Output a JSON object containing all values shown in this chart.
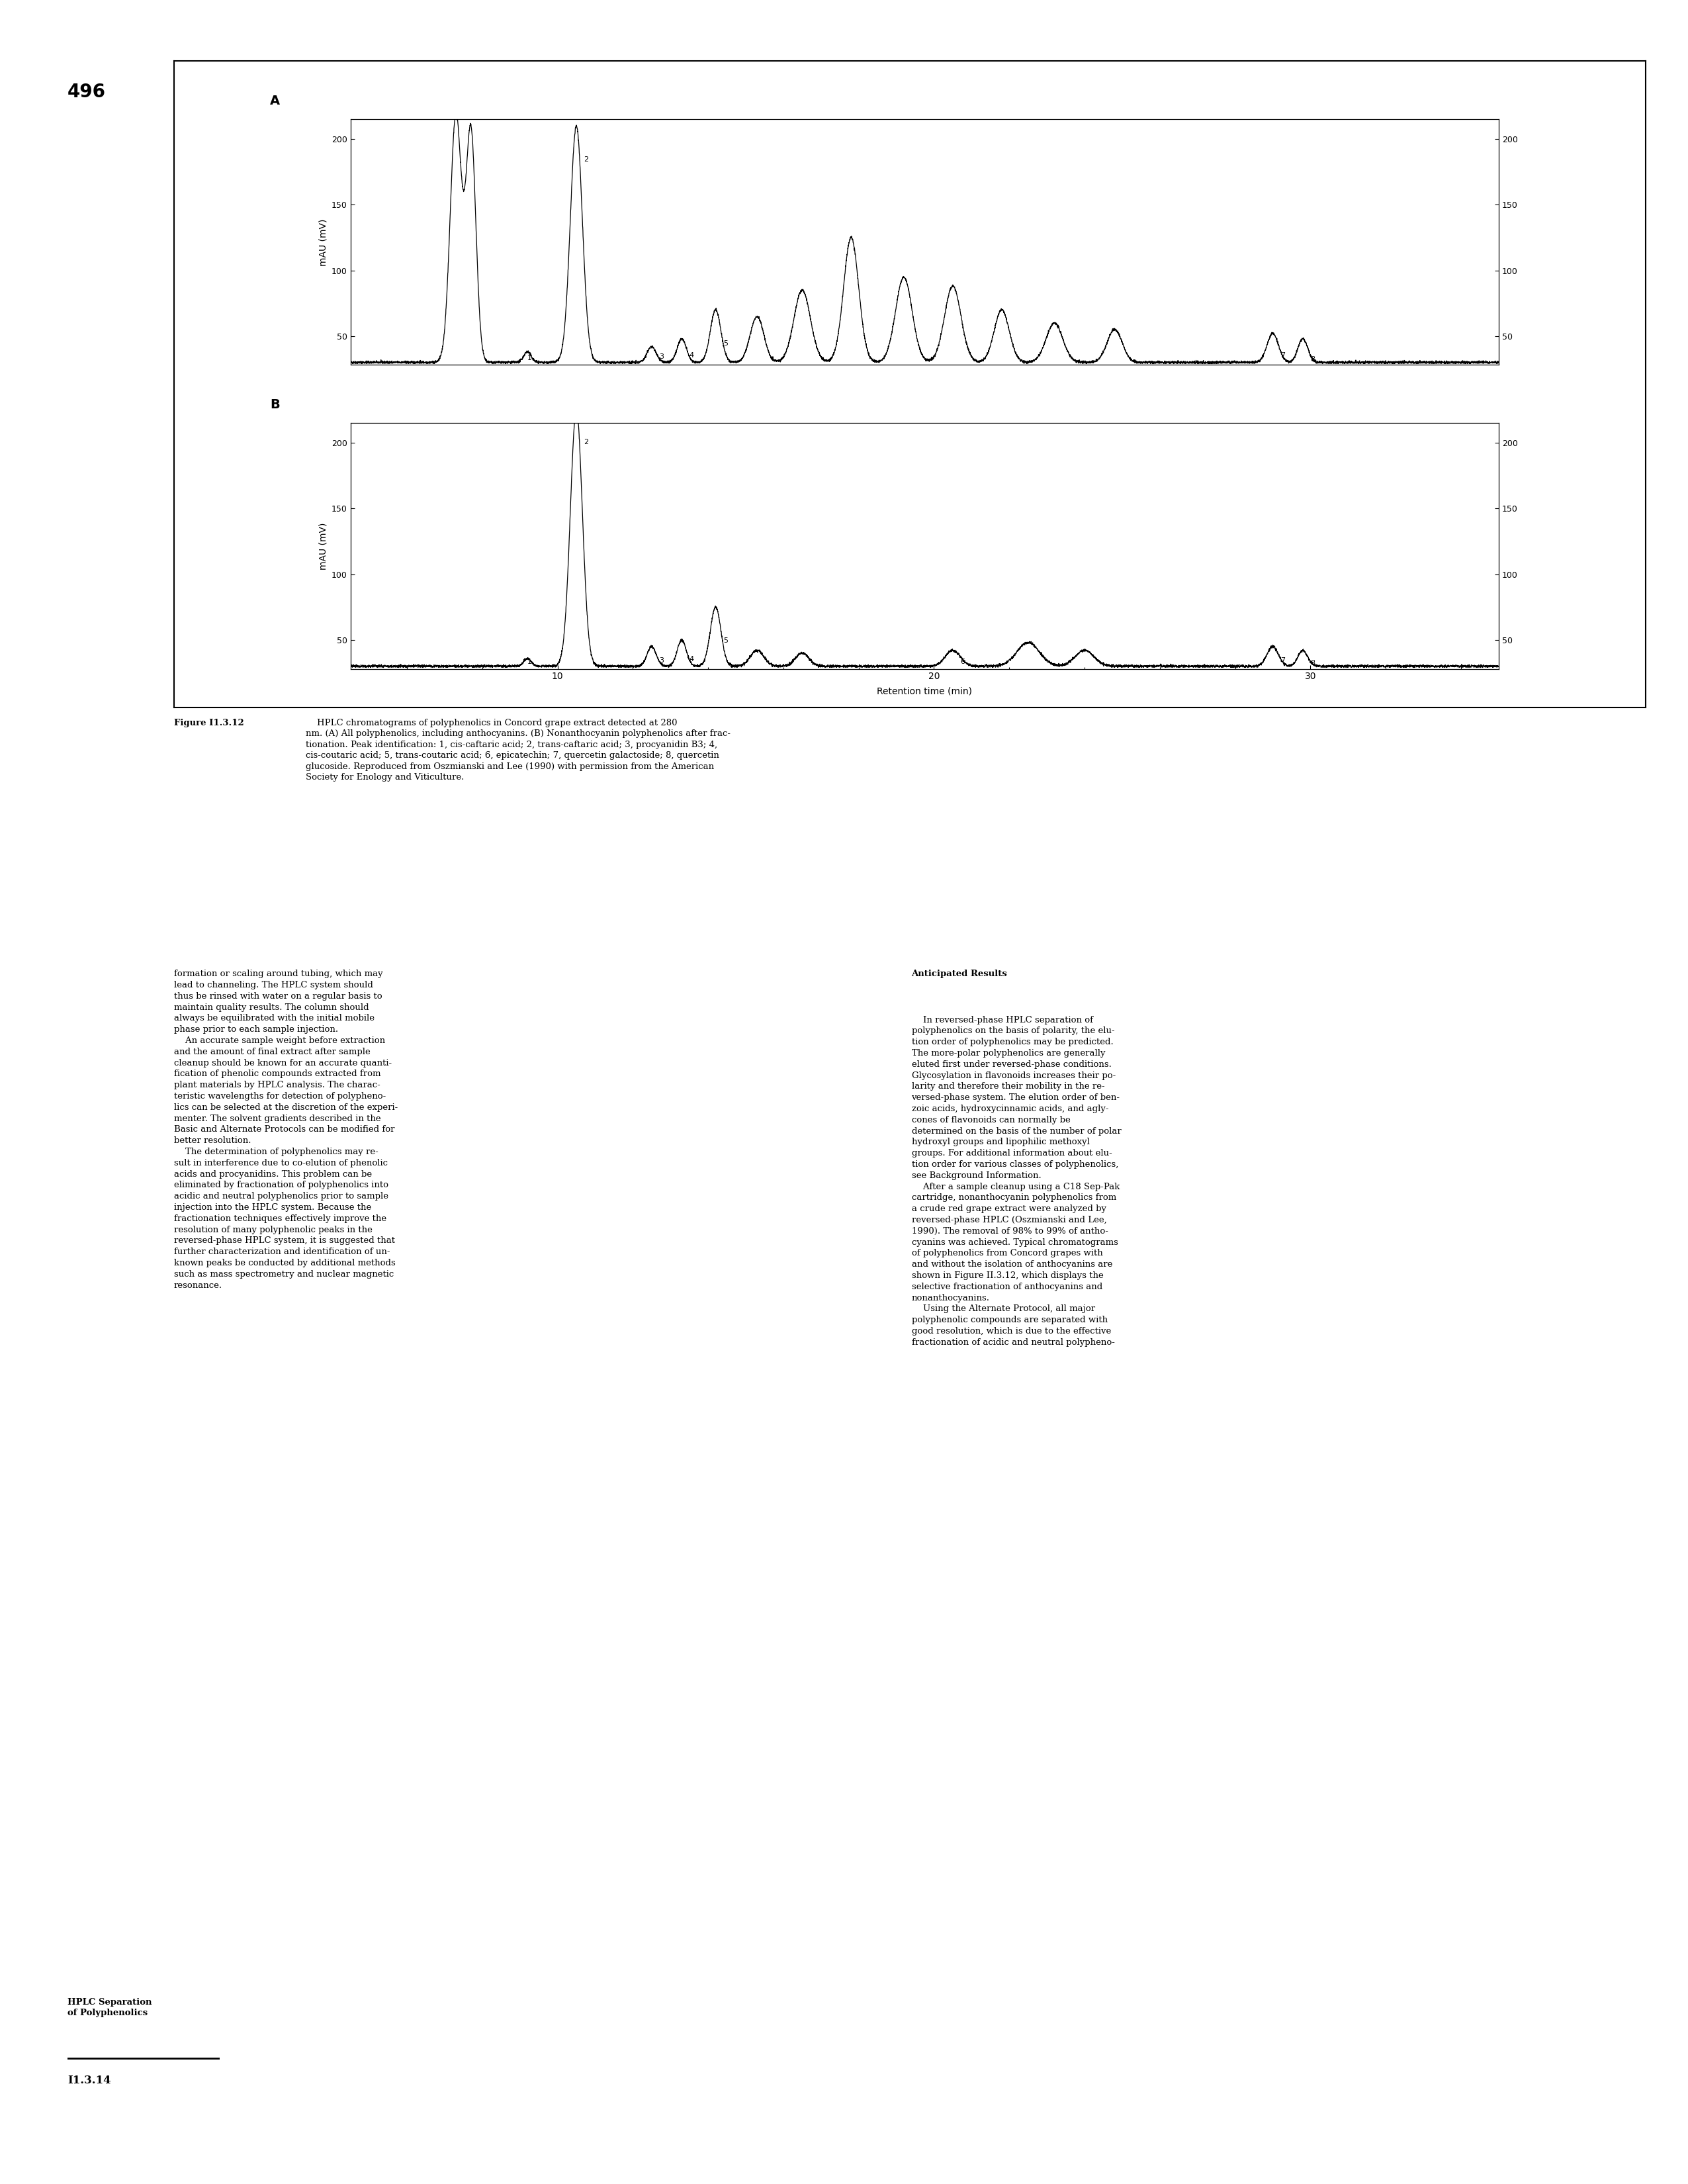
{
  "page_number": "496",
  "xlabel": "Retention time (min)",
  "ylabel": "mAU (mV)",
  "xlim": [
    4.5,
    35
  ],
  "ylim": [
    28,
    215
  ],
  "xticks": [
    10,
    20,
    30
  ],
  "yticks": [
    50,
    100,
    150,
    200
  ],
  "background_color": "#ffffff",
  "line_color": "#000000",
  "caption_figure_label": "Figure I1.3.12",
  "caption_body": "    HPLC chromatograms of polyphenolics in Concord grape extract detected at 280\nnm. (A) All polyphenolics, including anthocyanins. (B) Nonanthocyanin polyphenolics after frac-\ntionation. Peak identification: 1, cis-caftaric acid; 2, trans-caftaric acid; 3, procyanidin B3; 4,\ncis-coutaric acid; 5, trans-coutaric acid; 6, epicatechin; 7, quercetin galactoside; 8, quercetin\nglucoside. Reproduced from Oszmianski and Lee (1990) with permission from the American\nSociety for Enology and Viticulture.",
  "left_col_text": "formation or scaling around tubing, which may\nlead to channeling. The HPLC system should\nthus be rinsed with water on a regular basis to\nmaintain quality results. The column should\nalways be equilibrated with the initial mobile\nphase prior to each sample injection.\n    An accurate sample weight before extraction\nand the amount of final extract after sample\ncleanup should be known for an accurate quanti-\nfication of phenolic compounds extracted from\nplant materials by HPLC analysis. The charac-\nteristic wavelengths for detection of polypheno-\nlics can be selected at the discretion of the experi-\nmenter. The solvent gradients described in the\nBasic and Alternate Protocols can be modified for\nbetter resolution.\n    The determination of polyphenolics may re-\nsult in interference due to co-elution of phenolic\nacids and procyanidins. This problem can be\neliminated by fractionation of polyphenolics into\nacidic and neutral polyphenolics prior to sample\ninjection into the HPLC system. Because the\nfractionation techniques effectively improve the\nresolution of many polyphenolic peaks in the\nreversed-phase HPLC system, it is suggested that\nfurther characterization and identification of un-\nknown peaks be conducted by additional methods\nsuch as mass spectrometry and nuclear magnetic\nresonance.",
  "right_col_header": "Anticipated Results",
  "right_col_text": "    In reversed-phase HPLC separation of\npolyphenolics on the basis of polarity, the elu-\ntion order of polyphenolics may be predicted.\nThe more-polar polyphenolics are generally\neluted first under reversed-phase conditions.\nGlycosylation in flavonoids increases their po-\nlarity and therefore their mobility in the re-\nversed-phase system. The elution order of ben-\nzoic acids, hydroxycinnamic acids, and agly-\ncones of flavonoids can normally be\ndetermined on the basis of the number of polar\nhydroxyl groups and lipophilic methoxyl\ngroups. For additional information about elu-\ntion order for various classes of polyphenolics,\nsee Background Information.\n    After a sample cleanup using a C18 Sep-Pak\ncartridge, nonanthocyanin polyphenolics from\na crude red grape extract were analyzed by\nreversed-phase HPLC (Oszmianski and Lee,\n1990). The removal of 98% to 99% of antho-\ncyanins was achieved. Typical chromatograms\nof polyphenolics from Concord grapes with\nand without the isolation of anthocyanins are\nshown in Figure II.3.12, which displays the\nselective fractionation of anthocyanins and\nnonanthocyanins.\n    Using the Alternate Protocol, all major\npolyphenolic compounds are separated with\ngood resolution, which is due to the effective\nfractionation of acidic and neutral polypheno-",
  "sidebar_line1": "HPLC Separation",
  "sidebar_line2": "of Polyphenolics",
  "sidebar_code": "I1.3.14"
}
